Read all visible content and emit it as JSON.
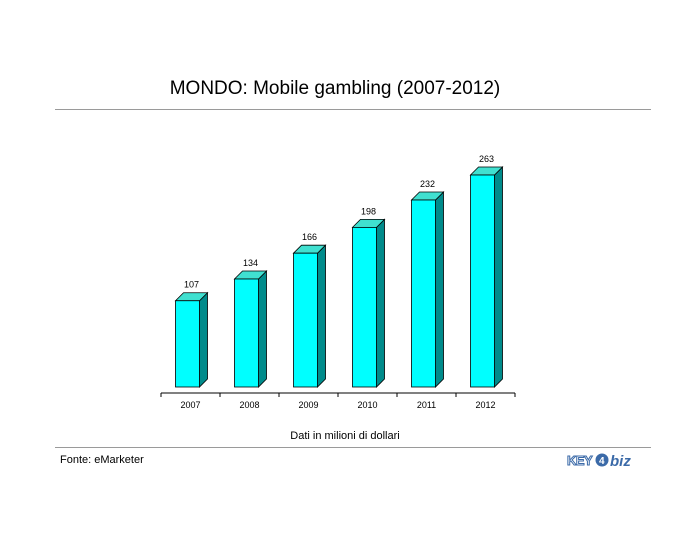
{
  "chart_data": {
    "type": "bar",
    "title": "MONDO: Mobile gambling (2007-2012)",
    "categories": [
      "2007",
      "2008",
      "2009",
      "2010",
      "2011",
      "2012"
    ],
    "values": [
      107,
      134,
      166,
      198,
      232,
      263
    ],
    "xlabel": "Dati in milioni di dollari",
    "ylabel": "",
    "ylim": [
      0,
      263
    ],
    "grid": false,
    "legend": "none",
    "three_d": true,
    "colors": {
      "face": "#00ffff",
      "side": "#008b8b",
      "top": "#40e0d0",
      "edge": "#000000"
    }
  },
  "footer": {
    "source": "Fonte: eMarketer",
    "logo_text": "KEY4biz"
  }
}
